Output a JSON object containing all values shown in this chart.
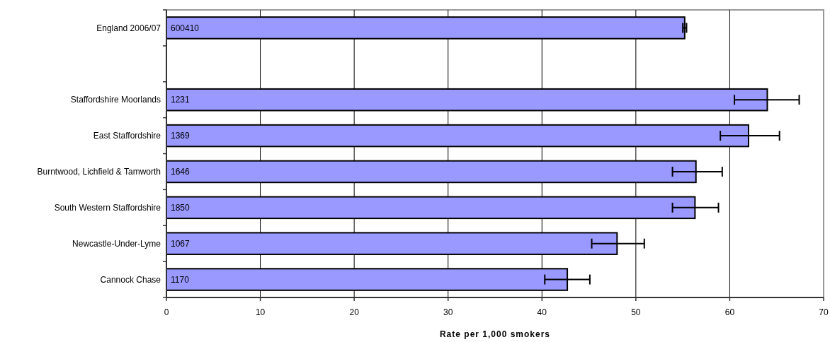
{
  "chart_data": {
    "type": "bar",
    "orientation": "horizontal",
    "xlabel": "Rate per 1,000 smokers",
    "categories": [
      "England 2006/07",
      null,
      "Staffordshire Moorlands",
      "East Staffordshire",
      "Burntwood, Lichfield & Tamworth",
      "South Western Staffordshire",
      "Newcastle-Under-Lyme",
      "Cannock Chase"
    ],
    "values": [
      55.2,
      null,
      64.0,
      62.0,
      56.4,
      56.3,
      48.0,
      42.7
    ],
    "errors": [
      [
        55.0,
        55.4
      ],
      null,
      [
        60.5,
        67.4
      ],
      [
        59.0,
        65.3
      ],
      [
        53.9,
        59.2
      ],
      [
        53.9,
        58.8
      ],
      [
        45.3,
        50.9
      ],
      [
        40.3,
        45.1
      ]
    ],
    "annotations": [
      "600410",
      "1231",
      "1369",
      "1646",
      "1850",
      "1067",
      "1170"
    ],
    "color": "#9999ff",
    "xlim": [
      0,
      70
    ],
    "xticks": [
      0,
      10,
      20,
      30,
      40,
      50,
      60,
      70
    ],
    "grid": "x"
  }
}
